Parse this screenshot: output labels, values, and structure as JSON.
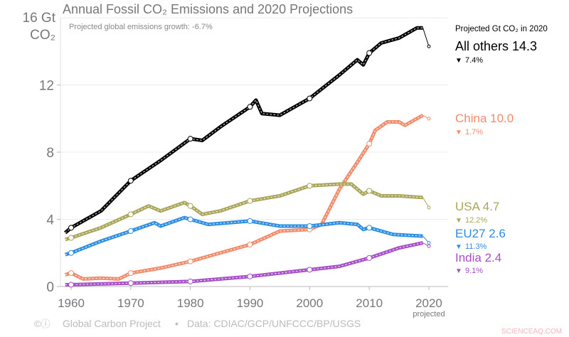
{
  "chart_data": {
    "type": "line",
    "title": "Annual Fossil CO₂ Emissions and 2020 Projections",
    "subtitle": "Projected global emissions growth: -6.7%",
    "ylabel_line1": "16 Gt",
    "ylabel_line2": "CO₂",
    "ylim": [
      0,
      16
    ],
    "xlim": [
      1959,
      2020
    ],
    "yticks": [
      "0",
      "4",
      "8",
      "12"
    ],
    "xticks": [
      "1960",
      "1970",
      "1980",
      "1990",
      "2000",
      "2010",
      "2020"
    ],
    "xtick_note": "projected",
    "grid": true,
    "legend_header": "Projected Gt CO₂ in 2020",
    "series": [
      {
        "name": "All others",
        "projected_2020": "14.3",
        "change": "7.4%",
        "color": "#000000",
        "x": [
          1959,
          1960,
          1965,
          1970,
          1975,
          1980,
          1982,
          1985,
          1990,
          1991,
          1992,
          1995,
          2000,
          2005,
          2008,
          2009,
          2010,
          2012,
          2015,
          2018,
          2019
        ],
        "y": [
          3.2,
          3.5,
          4.5,
          6.3,
          7.5,
          8.8,
          8.7,
          9.5,
          10.7,
          11.1,
          10.3,
          10.2,
          11.2,
          12.6,
          13.5,
          13.2,
          13.9,
          14.5,
          14.8,
          15.4,
          15.4
        ],
        "y2020": 14.3
      },
      {
        "name": "China",
        "projected_2020": "10.0",
        "change": "1.7%",
        "color": "#f08c6c",
        "x": [
          1959,
          1960,
          1962,
          1965,
          1968,
          1970,
          1975,
          1980,
          1985,
          1990,
          1995,
          2000,
          2002,
          2005,
          2008,
          2010,
          2011,
          2013,
          2015,
          2016,
          2019
        ],
        "y": [
          0.7,
          0.8,
          0.45,
          0.5,
          0.45,
          0.8,
          1.1,
          1.5,
          2.0,
          2.5,
          3.3,
          3.4,
          3.7,
          5.8,
          7.4,
          8.5,
          9.3,
          9.8,
          9.8,
          9.6,
          10.2
        ],
        "y2020": 10.0
      },
      {
        "name": "USA",
        "projected_2020": "4.7",
        "change": "12.2%",
        "color": "#a9a65a",
        "x": [
          1959,
          1960,
          1965,
          1970,
          1973,
          1975,
          1979,
          1980,
          1982,
          1985,
          1990,
          1995,
          2000,
          2005,
          2007,
          2009,
          2010,
          2012,
          2015,
          2019
        ],
        "y": [
          2.8,
          2.9,
          3.5,
          4.3,
          4.8,
          4.5,
          5.0,
          4.8,
          4.3,
          4.5,
          5.1,
          5.4,
          6.0,
          6.1,
          6.1,
          5.5,
          5.7,
          5.4,
          5.4,
          5.3
        ],
        "y2020": 4.7
      },
      {
        "name": "EU27",
        "projected_2020": "2.6",
        "change": "11.3%",
        "color": "#2e8ee0",
        "x": [
          1959,
          1960,
          1965,
          1970,
          1974,
          1975,
          1979,
          1980,
          1983,
          1990,
          1995,
          2000,
          2005,
          2008,
          2009,
          2010,
          2014,
          2019
        ],
        "y": [
          1.9,
          2.0,
          2.7,
          3.3,
          3.8,
          3.6,
          4.1,
          4.0,
          3.7,
          3.9,
          3.6,
          3.6,
          3.8,
          3.7,
          3.4,
          3.5,
          3.1,
          3.0
        ],
        "y2020": 2.6
      },
      {
        "name": "India",
        "projected_2020": "2.4",
        "change": "9.1%",
        "color": "#a64fc8",
        "x": [
          1959,
          1970,
          1980,
          1990,
          2000,
          2005,
          2010,
          2015,
          2019
        ],
        "y": [
          0.1,
          0.2,
          0.3,
          0.6,
          1.0,
          1.2,
          1.7,
          2.3,
          2.6
        ],
        "y2020": 2.4
      }
    ]
  },
  "footer": {
    "credit": "Global Carbon Project",
    "source": "Data: CDIAC/GCP/UNFCCC/BP/USGS",
    "watermark": "SCIENCEAQ.COM"
  }
}
